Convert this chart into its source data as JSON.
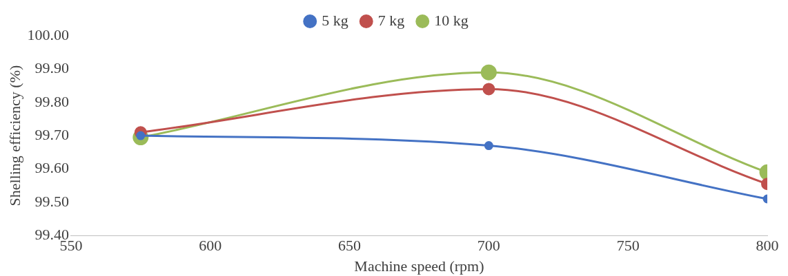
{
  "chart_data": {
    "type": "line",
    "xlabel": "Machine speed (rpm)",
    "ylabel": "Shelling efficiency (%)",
    "x": [
      575,
      700,
      800
    ],
    "series": [
      {
        "name": "5 kg",
        "color": "#4472c4",
        "values": [
          99.7,
          99.67,
          99.51
        ]
      },
      {
        "name": "7 kg",
        "color": "#c0504d",
        "values": [
          99.71,
          99.84,
          99.555
        ]
      },
      {
        "name": "10 kg",
        "color": "#9bbb59",
        "values": [
          99.695,
          99.89,
          99.59
        ]
      }
    ],
    "xlim": [
      550,
      800
    ],
    "xticks": [
      550,
      600,
      650,
      700,
      750,
      800
    ],
    "ylim": [
      99.4,
      100
    ],
    "yticks": [
      {
        "value": 99.4,
        "label": "99.40"
      },
      {
        "value": 99.5,
        "label": "99.50"
      },
      {
        "value": 99.6,
        "label": "99.60"
      },
      {
        "value": 99.7,
        "label": "99.70"
      },
      {
        "value": 99.8,
        "label": "99.80"
      },
      {
        "value": 99.9,
        "label": "99.90"
      },
      {
        "value": 100,
        "label": "100.00"
      }
    ],
    "grid": false,
    "legend": "top",
    "marker": "circle",
    "line_style": "solid"
  }
}
